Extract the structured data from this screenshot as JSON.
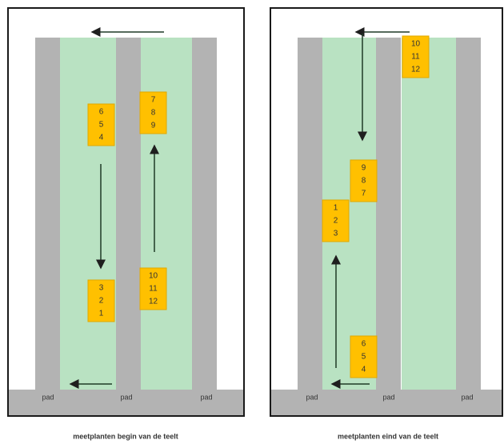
{
  "panels": [
    {
      "boxes": [
        [
          6,
          5,
          4
        ],
        [
          7,
          8,
          9
        ],
        [
          3,
          2,
          1
        ],
        [
          10,
          11,
          12
        ]
      ],
      "pads": [
        "pad",
        "pad",
        "pad"
      ],
      "caption": "meetplanten begin van de teelt"
    },
    {
      "boxes": [
        [
          10,
          11,
          12
        ],
        [
          9,
          8,
          7
        ],
        [
          1,
          2,
          3
        ],
        [
          6,
          5,
          4
        ]
      ],
      "pads": [
        "pad",
        "pad",
        "pad"
      ],
      "caption": "meetplanten eind van de teelt"
    }
  ]
}
